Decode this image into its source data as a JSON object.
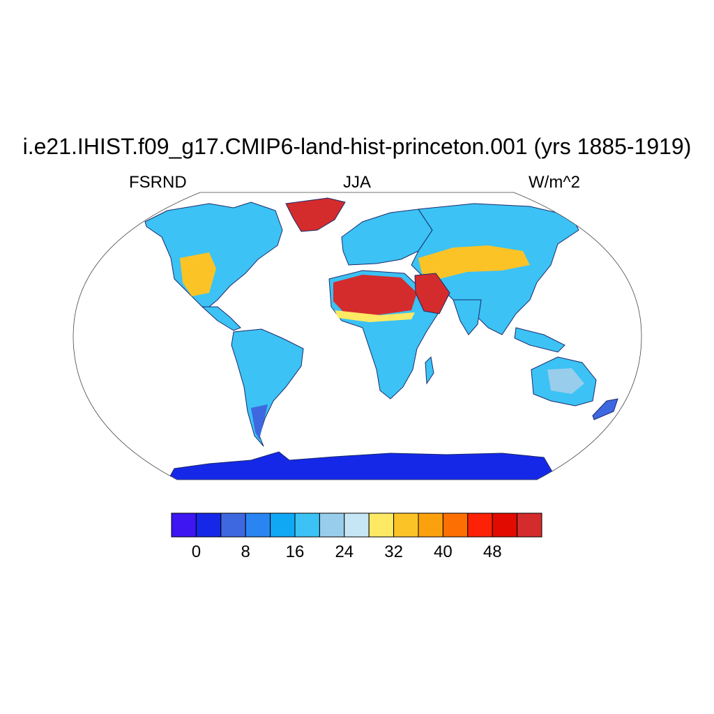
{
  "title": "i.e21.IHIST.f09_g17.CMIP6-land-hist-princeton.001 (yrs 1885-1919)",
  "subtitle": {
    "left": "FSRND",
    "center": "JJA",
    "right": "W/m^2"
  },
  "colorbar": {
    "colors": [
      "#3d16f2",
      "#1528e8",
      "#3d68e0",
      "#2a85f2",
      "#10a7f5",
      "#3cc2f4",
      "#98cdec",
      "#c7e6f5",
      "#fde964",
      "#fcc327",
      "#fba10d",
      "#fb6f03",
      "#fd2206",
      "#e10b01",
      "#d42c2c"
    ],
    "tick_labels": [
      "0",
      "8",
      "16",
      "24",
      "32",
      "40",
      "48"
    ]
  },
  "map": {
    "projection": "Robinson",
    "ocean_color": "#ffffff",
    "antarctica_color": "#1528e8",
    "desert_color": "#d42c2c",
    "regions": [
      {
        "name": "north-america",
        "color": "#3cc2f4"
      },
      {
        "name": "greenland",
        "color": "#d42c2c"
      },
      {
        "name": "south-america",
        "color": "#3cc2f4"
      },
      {
        "name": "europe",
        "color": "#3cc2f4"
      },
      {
        "name": "africa",
        "color": "#3cc2f4"
      },
      {
        "name": "sahara",
        "color": "#d42c2c"
      },
      {
        "name": "arabia",
        "color": "#d42c2c"
      },
      {
        "name": "asia",
        "color": "#3cc2f4"
      },
      {
        "name": "australia",
        "color": "#3cc2f4"
      },
      {
        "name": "antarctica",
        "color": "#1528e8"
      }
    ]
  }
}
